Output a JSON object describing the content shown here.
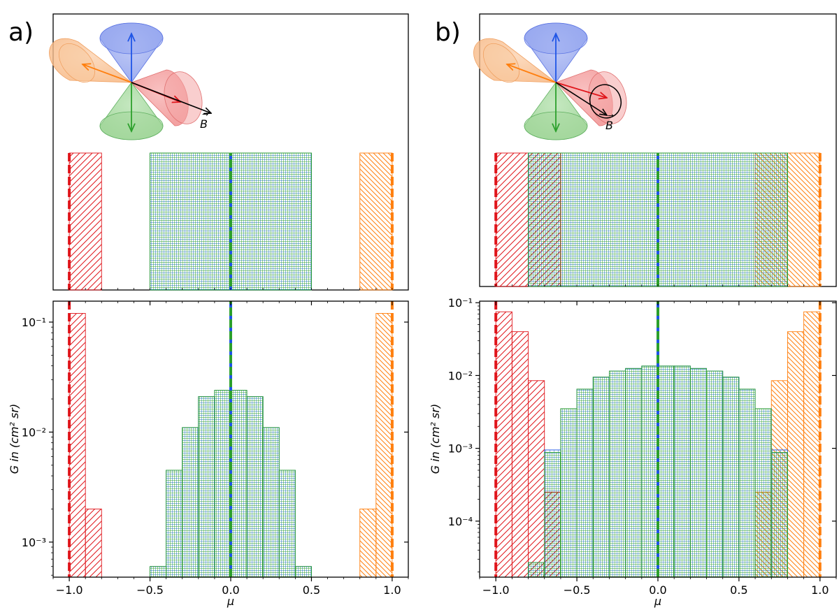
{
  "panels": [
    {
      "label": "a)",
      "field_label": "B",
      "geometry_variant": "fixed"
    },
    {
      "label": "b)",
      "field_label": "B",
      "geometry_variant": "rotating"
    }
  ],
  "colors": {
    "red": "#e0151b",
    "orange": "#ff7f0e",
    "blue": "#1f55e6",
    "green": "#2ca02c",
    "teal_grid": "#1f77b4",
    "black": "#000000"
  },
  "chart_data": [
    {
      "panel": "a",
      "type": "bar",
      "subtype": "histogram",
      "xlabel": "μ",
      "ylabel": "G in (cm² sr)",
      "xlim": [
        -1.1,
        1.1
      ],
      "ylim": [
        0.00048,
        0.155
      ],
      "y_scale": "log",
      "x_ticks": [
        -1.0,
        -0.5,
        0.0,
        0.5,
        1.0
      ],
      "x_tick_labels": [
        "−1.0",
        "−0.5",
        "0.0",
        "0.5",
        "1.0"
      ],
      "y_ticks": [
        0.001,
        0.01,
        0.1
      ],
      "y_tick_labels": [
        "10⁻³",
        "10⁻²",
        "10⁻¹"
      ],
      "bin_width": 0.1,
      "series": [
        {
          "color": "red",
          "hatch": "diag",
          "bins": [
            [
              -1.0,
              0.12
            ],
            [
              -0.9,
              0.002
            ]
          ]
        },
        {
          "color": "orange",
          "hatch": "anti",
          "bins": [
            [
              0.8,
              0.002
            ],
            [
              0.9,
              0.12
            ]
          ]
        },
        {
          "color": "blue",
          "hatch": "grid",
          "bins": [
            [
              -0.5,
              0.0006
            ],
            [
              -0.4,
              0.0045
            ],
            [
              -0.3,
              0.011
            ],
            [
              -0.2,
              0.021
            ],
            [
              -0.1,
              0.024
            ],
            [
              0.0,
              0.024
            ],
            [
              0.1,
              0.021
            ],
            [
              0.2,
              0.011
            ],
            [
              0.3,
              0.0045
            ],
            [
              0.4,
              0.0006
            ]
          ]
        },
        {
          "color": "green",
          "hatch": "grid",
          "bins": [
            [
              -0.5,
              0.0006
            ],
            [
              -0.4,
              0.0045
            ],
            [
              -0.3,
              0.011
            ],
            [
              -0.2,
              0.021
            ],
            [
              -0.1,
              0.024
            ],
            [
              0.0,
              0.024
            ],
            [
              0.1,
              0.021
            ],
            [
              0.2,
              0.011
            ],
            [
              0.3,
              0.0045
            ],
            [
              0.4,
              0.0006
            ]
          ]
        }
      ],
      "vertical_lines": [
        {
          "x": -1.0,
          "color": "red"
        },
        {
          "x": 1.0,
          "color": "orange"
        },
        {
          "x": 0.0,
          "color": "blue"
        },
        {
          "x": 0.0,
          "color": "green"
        }
      ],
      "top_strip": {
        "bands": [
          {
            "x0": -1.0,
            "x1": -0.8,
            "color": "red",
            "hatch": "diag"
          },
          {
            "x0": 0.8,
            "x1": 1.0,
            "color": "orange",
            "hatch": "anti"
          },
          {
            "x0": -0.5,
            "x1": 0.5,
            "color": "blue",
            "hatch": "grid"
          },
          {
            "x0": -0.5,
            "x1": 0.5,
            "color": "green",
            "hatch": "grid"
          }
        ]
      }
    },
    {
      "panel": "b",
      "type": "bar",
      "subtype": "histogram",
      "xlabel": "μ",
      "ylabel": "G in (cm² sr)",
      "xlim": [
        -1.1,
        1.1
      ],
      "ylim": [
        1.7e-05,
        0.105
      ],
      "y_scale": "log",
      "x_ticks": [
        -1.0,
        -0.5,
        0.0,
        0.5,
        1.0
      ],
      "x_tick_labels": [
        "−1.0",
        "−0.5",
        "0.0",
        "0.5",
        "1.0"
      ],
      "y_ticks": [
        0.0001,
        0.001,
        0.01,
        0.1
      ],
      "y_tick_labels": [
        "10⁻⁴",
        "10⁻³",
        "10⁻²",
        "10⁻¹"
      ],
      "bin_width": 0.1,
      "series": [
        {
          "color": "red",
          "hatch": "diag",
          "bins": [
            [
              -1.0,
              0.075
            ],
            [
              -0.9,
              0.04
            ],
            [
              -0.8,
              0.0085
            ],
            [
              -0.7,
              0.00025
            ]
          ]
        },
        {
          "color": "orange",
          "hatch": "anti",
          "bins": [
            [
              0.6,
              0.00025
            ],
            [
              0.7,
              0.0085
            ],
            [
              0.8,
              0.04
            ],
            [
              0.9,
              0.075
            ]
          ]
        },
        {
          "color": "blue",
          "hatch": "grid",
          "bins": [
            [
              -0.8,
              2.7e-05
            ],
            [
              -0.7,
              0.00095
            ],
            [
              -0.6,
              0.0035
            ],
            [
              -0.5,
              0.0065
            ],
            [
              -0.4,
              0.0095
            ],
            [
              -0.3,
              0.0115
            ],
            [
              -0.2,
              0.0125
            ],
            [
              -0.1,
              0.0135
            ],
            [
              0.0,
              0.0135
            ],
            [
              0.1,
              0.0135
            ],
            [
              0.2,
              0.0125
            ],
            [
              0.3,
              0.0115
            ],
            [
              0.4,
              0.0095
            ],
            [
              0.5,
              0.0065
            ],
            [
              0.6,
              0.0035
            ],
            [
              0.7,
              0.00095
            ]
          ]
        },
        {
          "color": "green",
          "hatch": "grid",
          "bins": [
            [
              -0.8,
              2.7e-05
            ],
            [
              -0.7,
              0.00088
            ],
            [
              -0.6,
              0.0035
            ],
            [
              -0.5,
              0.0065
            ],
            [
              -0.4,
              0.0095
            ],
            [
              -0.3,
              0.0115
            ],
            [
              -0.2,
              0.0125
            ],
            [
              -0.1,
              0.0135
            ],
            [
              0.0,
              0.0135
            ],
            [
              0.1,
              0.0135
            ],
            [
              0.2,
              0.0125
            ],
            [
              0.3,
              0.0115
            ],
            [
              0.4,
              0.0095
            ],
            [
              0.5,
              0.0065
            ],
            [
              0.6,
              0.0035
            ],
            [
              0.7,
              0.00088
            ]
          ]
        }
      ],
      "vertical_lines": [
        {
          "x": -1.0,
          "color": "red"
        },
        {
          "x": 1.0,
          "color": "orange"
        },
        {
          "x": 0.0,
          "color": "blue"
        },
        {
          "x": 0.0,
          "color": "green"
        }
      ],
      "top_strip": {
        "bands": [
          {
            "x0": -1.0,
            "x1": -0.6,
            "color": "red",
            "hatch": "diag"
          },
          {
            "x0": 0.6,
            "x1": 1.0,
            "color": "orange",
            "hatch": "anti"
          },
          {
            "x0": -0.8,
            "x1": 0.8,
            "color": "blue",
            "hatch": "grid"
          },
          {
            "x0": -0.8,
            "x1": 0.8,
            "color": "green",
            "hatch": "grid"
          }
        ]
      }
    }
  ]
}
